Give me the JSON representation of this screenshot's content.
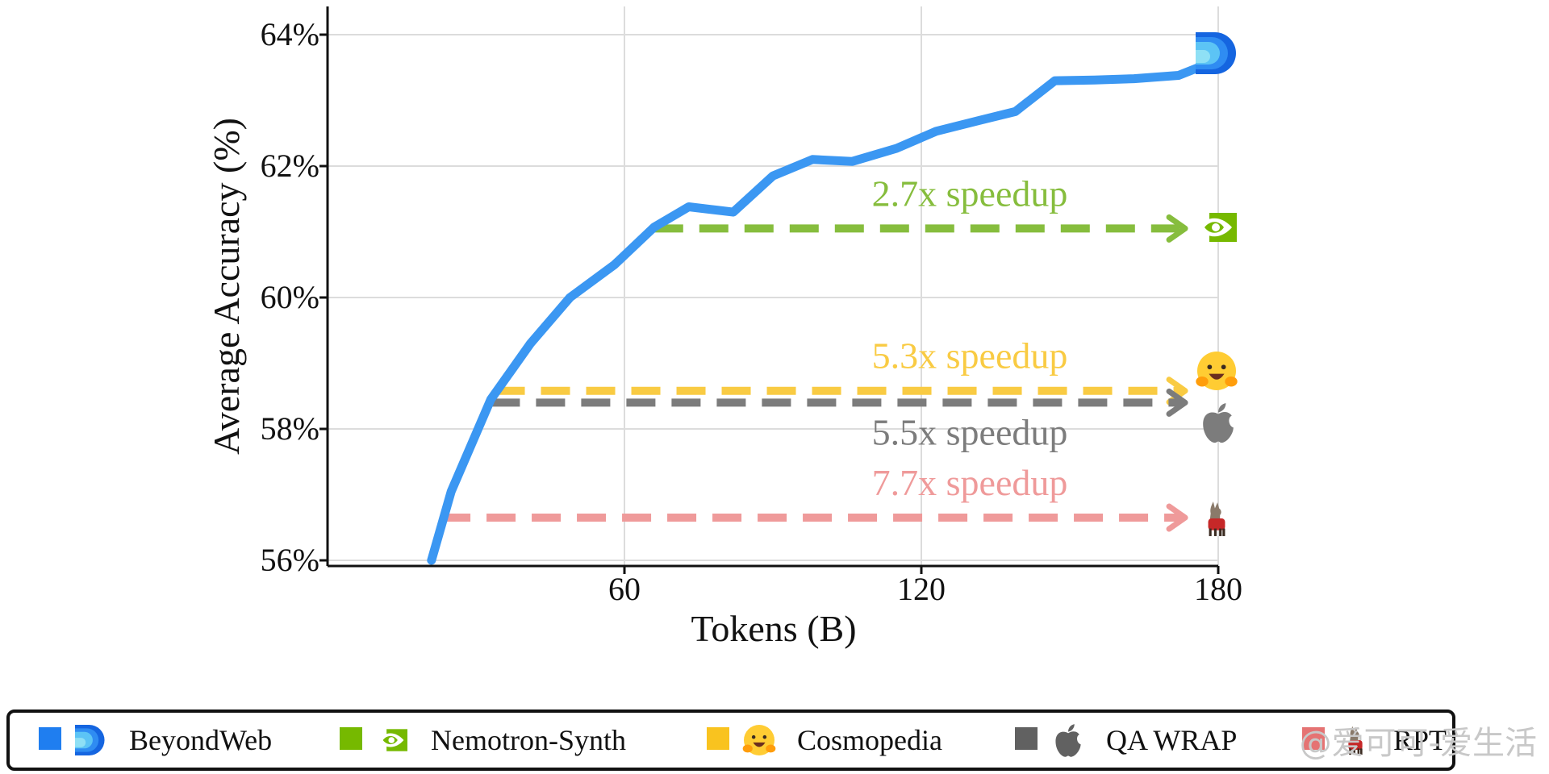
{
  "chart_data": {
    "type": "line",
    "xlabel": "Tokens (B)",
    "ylabel": "Average Accuracy (%)",
    "xlim": [
      0,
      180
    ],
    "ylim": [
      56,
      64.4
    ],
    "x_ticks": [
      60,
      120,
      180
    ],
    "x_tick_labels": [
      "60",
      "120",
      "180"
    ],
    "y_ticks": [
      56,
      58,
      60,
      62,
      64
    ],
    "y_tick_labels": [
      "56%",
      "58%",
      "60%",
      "62%",
      "64%"
    ],
    "grid": true,
    "series": [
      {
        "name": "BeyondWeb",
        "color": "#3b97f2",
        "x": [
          21,
          25,
          33,
          41,
          49,
          58,
          66,
          73,
          82,
          90,
          98,
          106,
          115,
          123,
          132,
          139,
          147,
          155,
          163,
          172,
          180
        ],
        "y": [
          56.0,
          57.05,
          58.45,
          59.3,
          60.0,
          60.5,
          61.07,
          61.38,
          61.3,
          61.85,
          62.1,
          62.07,
          62.27,
          62.53,
          62.7,
          62.83,
          63.3,
          63.31,
          63.33,
          63.38,
          63.62
        ]
      }
    ],
    "baselines": [
      {
        "name": "Nemotron-Synth",
        "color": "#86bd3d",
        "y": 61.05,
        "x_start": 66,
        "x_end": 173,
        "label": "2.7x speedup",
        "icon": "nvidia-eye-icon"
      },
      {
        "name": "Cosmopedia",
        "color": "#f9cb43",
        "y": 58.58,
        "x_start": 34,
        "x_end": 173,
        "label": "5.3x speedup",
        "icon": "hugging-face-icon"
      },
      {
        "name": "QA WRAP",
        "color": "#7c7c7c",
        "y": 58.4,
        "x_start": 33,
        "x_end": 173,
        "label": "5.5x speedup",
        "icon": "apple-icon"
      },
      {
        "name": "RPT",
        "color": "#ef9a9a",
        "y": 56.65,
        "x_start": 23,
        "x_end": 173,
        "label": "7.7x speedup",
        "icon": "llama-icon"
      }
    ],
    "legend": {
      "position": "bottom",
      "entries": [
        {
          "label": "BeyondWeb",
          "color": "#1f7ef0",
          "icon": "beyondweb-logo-icon"
        },
        {
          "label": "Nemotron-Synth",
          "color": "#76b900",
          "icon": "nvidia-eye-icon"
        },
        {
          "label": "Cosmopedia",
          "color": "#f9c31f",
          "icon": "hugging-face-icon"
        },
        {
          "label": "QA WRAP",
          "color": "#616161",
          "icon": "apple-icon"
        },
        {
          "label": "RPT",
          "color": "#e57373",
          "icon": "llama-icon"
        }
      ]
    }
  },
  "watermark": "@爱可可-爱生活"
}
